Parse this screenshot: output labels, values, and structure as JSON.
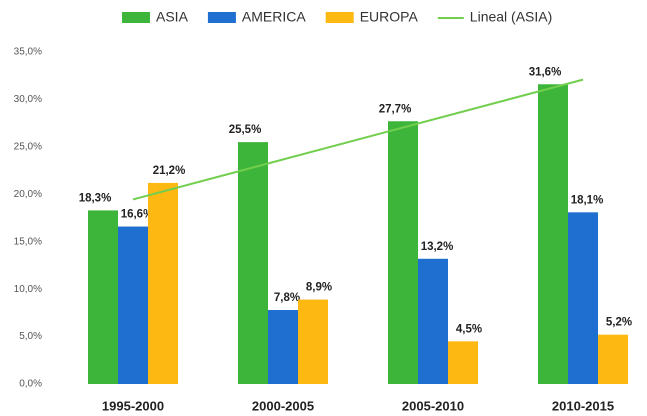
{
  "chart_data": {
    "type": "bar",
    "categories": [
      "1995-2000",
      "2000-2005",
      "2005-2010",
      "2010-2015"
    ],
    "series": [
      {
        "name": "ASIA",
        "color": "#3db53a",
        "values": [
          18.3,
          25.5,
          27.7,
          31.6
        ],
        "value_labels": [
          "18,3%",
          "25,5%",
          "27,7%",
          "31,6%"
        ]
      },
      {
        "name": "AMERICA",
        "color": "#1f6fd1",
        "values": [
          16.6,
          7.8,
          13.2,
          18.1
        ],
        "value_labels": [
          "16,6%",
          "7,8%",
          "13,2%",
          "18,1%"
        ]
      },
      {
        "name": "EUROPA",
        "color": "#fdb812",
        "values": [
          21.2,
          8.9,
          4.5,
          5.2
        ],
        "value_labels": [
          "21,2%",
          "8,9%",
          "4,5%",
          "5,2%"
        ]
      }
    ],
    "trendline": {
      "name": "Lineal (ASIA)",
      "color": "#72cf4e"
    },
    "ylim": [
      0,
      35
    ],
    "yticks": [
      {
        "value": 0,
        "label": "0,0%"
      },
      {
        "value": 5,
        "label": "5,0%"
      },
      {
        "value": 10,
        "label": "10,0%"
      },
      {
        "value": 15,
        "label": "15,0%"
      },
      {
        "value": 20,
        "label": "20,0%"
      },
      {
        "value": 25,
        "label": "25,0%"
      },
      {
        "value": 30,
        "label": "30,0%"
      },
      {
        "value": 35,
        "label": "35,0%"
      }
    ],
    "grid": false,
    "legend": "top"
  }
}
